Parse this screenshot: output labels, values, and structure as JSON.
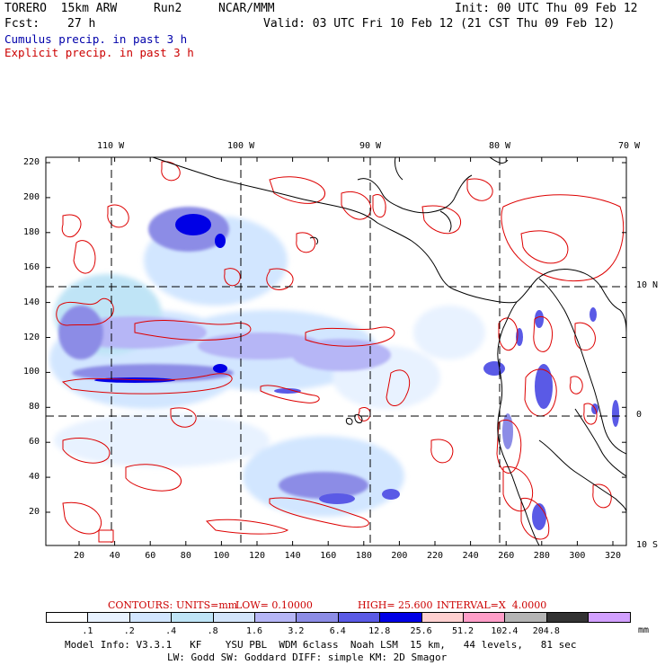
{
  "header": {
    "model": "TORERO  15km ARW",
    "run": "Run2",
    "org": "NCAR/MMM",
    "init": "Init: 00 UTC Thu 09 Feb 12",
    "fcst_label": "Fcst:",
    "fcst_value": "27 h",
    "valid": "Valid: 03 UTC Fri 10 Feb 12 (21 CST Thu 09 Feb 12)"
  },
  "legend": {
    "cumulus": "Cumulus precip. in past 3 h",
    "explicit": "Explicit precip. in past 3 h"
  },
  "colors": {
    "cumulus_text": "#0000aa",
    "explicit_text": "#cc0000",
    "contour": "#dd0000",
    "grid": "#000000"
  },
  "axes": {
    "lon_labels": [
      "110 W",
      "100 W",
      "90 W",
      "80 W",
      "70 W"
    ],
    "lat_labels": [
      "10 N",
      "0",
      "10 S"
    ],
    "y_ticks": [
      "220",
      "200",
      "180",
      "160",
      "140",
      "120",
      "100",
      "80",
      "60",
      "40",
      "20"
    ],
    "x_ticks": [
      "20",
      "40",
      "60",
      "80",
      "100",
      "120",
      "140",
      "160",
      "180",
      "200",
      "220",
      "240",
      "260",
      "280",
      "300",
      "320"
    ]
  },
  "contour_info": {
    "label": "CONTOURS:",
    "units": "UNITS=mm",
    "low": "LOW= 0.10000",
    "high": "HIGH= 25.600",
    "interval": "INTERVAL=X  4.0000"
  },
  "colorbar": {
    "colors": [
      "#ffffff",
      "#e8f2ff",
      "#d2e6ff",
      "#bfe4f6",
      "#d2e4fa",
      "#b6b6f6",
      "#8c8ce6",
      "#5a5ae6",
      "#0000e6",
      "#ffd0d0",
      "#ff9ec8",
      "#b4b4b4",
      "#323232",
      "#d2a0ff"
    ],
    "labels": [
      ".1",
      ".2",
      ".4",
      ".8",
      "1.6",
      "3.2",
      "6.4",
      "12.8",
      "25.6",
      "51.2",
      "102.4",
      "204.8"
    ],
    "unit": "mm"
  },
  "footer": {
    "line1": "Model Info: V3.3.1   KF    YSU PBL  WDM 6class  Noah LSM  15 km,   44 levels,   81 sec",
    "line2": "LW: Godd SW: Goddard DIFF: simple KM: 2D Smagor"
  },
  "map": {
    "overlay": "MFD"
  }
}
